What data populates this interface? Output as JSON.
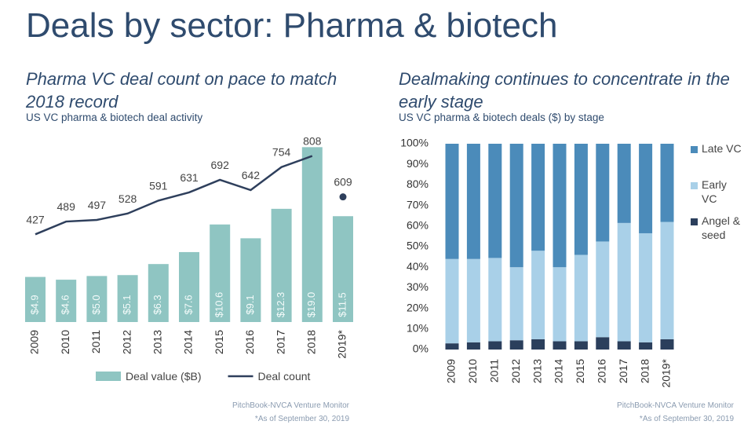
{
  "title": "Deals by sector: Pharma & biotech",
  "chart_data": [
    {
      "type": "bar",
      "title": "Pharma VC deal count on pace to match 2018 record",
      "subtitle": "US VC pharma & biotech deal activity",
      "categories": [
        "2009",
        "2010",
        "2011",
        "2012",
        "2013",
        "2014",
        "2015",
        "2016",
        "2017",
        "2018",
        "2019*"
      ],
      "series": [
        {
          "name": "Deal value ($B)",
          "type": "bar",
          "color": "#8fc5c2",
          "values": [
            4.9,
            4.6,
            5.0,
            5.1,
            6.3,
            7.6,
            10.6,
            9.1,
            12.3,
            19.0,
            11.5
          ],
          "value_labels": [
            "$4.9",
            "$4.6",
            "$5.0",
            "$5.1",
            "$6.3",
            "$7.6",
            "$10.6",
            "$9.1",
            "$12.3",
            "$19.0",
            "$11.5"
          ]
        },
        {
          "name": "Deal count",
          "type": "line",
          "axis": "y2",
          "color": "#2e3f5c",
          "values": [
            427,
            489,
            497,
            528,
            591,
            631,
            692,
            642,
            754,
            808,
            609
          ]
        }
      ],
      "ylim": [
        0,
        19.2
      ],
      "y2lim": [
        0,
        860
      ],
      "legend": "bottom",
      "source": "PitchBook-NVCA Venture Monitor",
      "note": "*As of September 30, 2019"
    },
    {
      "type": "stacked_bar",
      "title": "Dealmaking continues to concentrate in the early stage",
      "subtitle": "US VC pharma & biotech deals ($) by stage",
      "categories": [
        "2009",
        "2010",
        "2011",
        "2012",
        "2013",
        "2014",
        "2015",
        "2016",
        "2017",
        "2018",
        "2019*"
      ],
      "series": [
        {
          "name": "Angel & seed",
          "color": "#2b3f5c",
          "values": [
            3,
            3.5,
            4,
            4.5,
            5,
            4,
            4,
            6,
            4,
            3.5,
            5
          ]
        },
        {
          "name": "Early VC",
          "color": "#a9d0e8",
          "values": [
            41,
            40.5,
            40.5,
            35.5,
            43,
            36,
            42,
            46.5,
            57.5,
            53,
            57
          ]
        },
        {
          "name": "Late VC",
          "color": "#4b8bba",
          "values": [
            56,
            56,
            55.5,
            60,
            52,
            60,
            54,
            47.5,
            38.5,
            43.5,
            38
          ]
        }
      ],
      "ylim": [
        0,
        100
      ],
      "yticks": [
        {
          "value": 0,
          "label": "0%"
        },
        {
          "value": 10,
          "label": "10%"
        },
        {
          "value": 20,
          "label": "20%"
        },
        {
          "value": 30,
          "label": "30%"
        },
        {
          "value": 40,
          "label": "40%"
        },
        {
          "value": 50,
          "label": "50%"
        },
        {
          "value": 60,
          "label": "60%"
        },
        {
          "value": 70,
          "label": "70%"
        },
        {
          "value": 80,
          "label": "80%"
        },
        {
          "value": 90,
          "label": "90%"
        },
        {
          "value": 100,
          "label": "100%"
        }
      ],
      "legend": "right",
      "source": "PitchBook-NVCA Venture Monitor",
      "note": "*As of September 30, 2019"
    }
  ]
}
